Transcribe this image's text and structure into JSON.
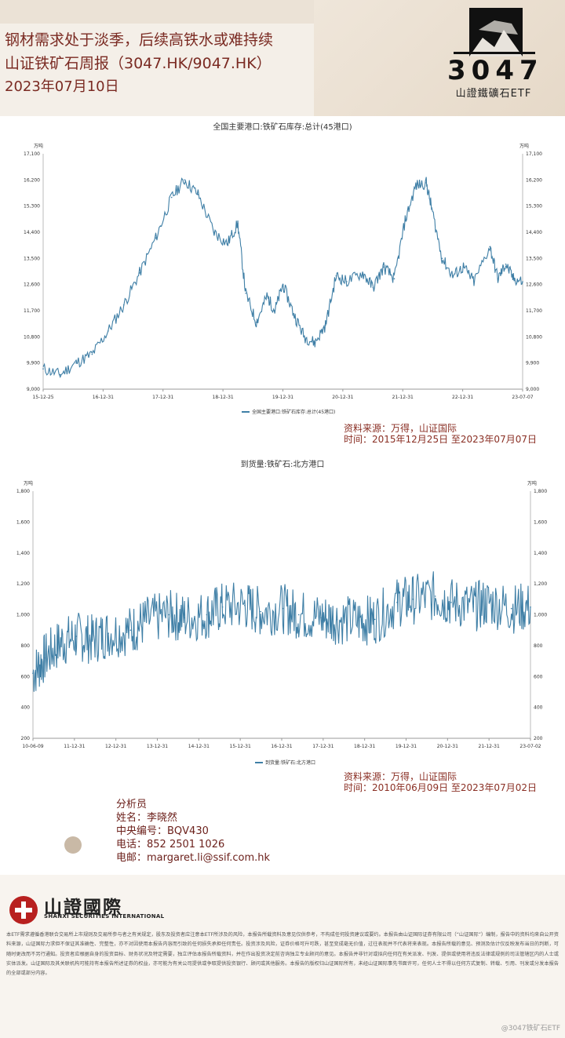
{
  "header": {
    "title": "钢材需求处于淡季，后续高铁水或难持续",
    "subtitle": "山证铁矿石周报（3047.HK/9047.HK）",
    "date": "2023年07月10日",
    "logo_code": "3047",
    "logo_name": "山證鐵礦石ETF"
  },
  "colors": {
    "brand": "#7a2a22",
    "line": "#3f7fa6",
    "source_text": "#8a2f24"
  },
  "chart_data": [
    {
      "type": "line",
      "title": "全国主要港口:铁矿石库存:总计(45港口)",
      "unit_left": "万吨",
      "unit_right": "万吨",
      "legend": "全国主要港口:铁矿石库存:总计(45港口)",
      "ylim": [
        9000,
        17100
      ],
      "yticks": [
        "9,000",
        "9,900",
        "10,800",
        "11,700",
        "12,600",
        "13,500",
        "14,400",
        "15,300",
        "16,200",
        "17,100"
      ],
      "xticks": [
        "15-12-25",
        "16-12-31",
        "17-12-31",
        "18-12-31",
        "19-12-31",
        "20-12-31",
        "21-12-31",
        "22-12-31",
        "23-07-07"
      ],
      "x": [
        "2015-12-25",
        "2016-04-01",
        "2016-07-01",
        "2016-10-01",
        "2017-01-01",
        "2017-04-01",
        "2017-07-01",
        "2017-10-01",
        "2017-12-31",
        "2018-03-15",
        "2018-06-01",
        "2018-09-01",
        "2018-11-15",
        "2019-01-15",
        "2019-03-01",
        "2019-05-01",
        "2019-07-01",
        "2019-08-15",
        "2019-10-01",
        "2019-12-01",
        "2020-02-01",
        "2020-04-01",
        "2020-06-01",
        "2020-08-01",
        "2020-10-01",
        "2020-12-31",
        "2021-03-01",
        "2021-05-01",
        "2021-07-01",
        "2021-09-01",
        "2021-11-01",
        "2021-12-31",
        "2022-02-01",
        "2022-04-01",
        "2022-06-01",
        "2022-08-01",
        "2022-10-01",
        "2022-12-31",
        "2023-02-15",
        "2023-04-01",
        "2023-05-15",
        "2023-07-07"
      ],
      "y": [
        9700,
        9500,
        9900,
        10200,
        11000,
        11900,
        13000,
        14200,
        15600,
        16200,
        15700,
        14400,
        14000,
        14700,
        12300,
        11300,
        12200,
        11700,
        12600,
        11600,
        10800,
        10600,
        11200,
        12900,
        12700,
        13000,
        12500,
        13200,
        12800,
        14800,
        16000,
        16100,
        15200,
        13500,
        12900,
        13200,
        12700,
        13900,
        12800,
        13300,
        12800,
        12700
      ],
      "source": "资料来源：万得，山证国际",
      "time": "时间：2015年12月25日 至2023年07月07日"
    },
    {
      "type": "line",
      "title": "到货量:铁矿石:北方港口",
      "unit_left": "万吨",
      "unit_right": "万吨",
      "legend": "到货量:铁矿石:北方港口",
      "ylim": [
        200,
        1800
      ],
      "yticks": [
        "200",
        "400",
        "600",
        "800",
        "1,000",
        "1,200",
        "1,400",
        "1,600",
        "1,800"
      ],
      "xticks": [
        "10-06-09",
        "11-12-31",
        "12-12-31",
        "13-12-31",
        "14-12-31",
        "15-12-31",
        "16-12-31",
        "17-12-31",
        "18-12-31",
        "19-12-31",
        "20-12-31",
        "21-12-31",
        "23-07-02"
      ],
      "x": [
        "2010-06-09",
        "2010-10-01",
        "2011-03-01",
        "2011-08-01",
        "2011-12-31",
        "2012-06-01",
        "2012-12-31",
        "2013-06-01",
        "2013-12-31",
        "2014-06-01",
        "2014-12-31",
        "2015-06-01",
        "2015-12-31",
        "2016-06-01",
        "2016-12-31",
        "2017-06-01",
        "2017-12-31",
        "2018-06-01",
        "2018-12-31",
        "2019-06-01",
        "2019-12-31",
        "2020-06-01",
        "2020-12-31",
        "2021-06-01",
        "2021-12-31",
        "2022-06-01",
        "2022-12-31",
        "2023-07-02"
      ],
      "y": [
        620,
        720,
        820,
        860,
        840,
        880,
        900,
        960,
        1000,
        980,
        1000,
        1050,
        1060,
        1020,
        1040,
        1000,
        980,
        970,
        960,
        970,
        1080,
        1100,
        1120,
        1080,
        1050,
        1080,
        1040,
        1050
      ],
      "source": "资料来源：万得，山证国际",
      "time": "时间：2010年06月09日 至2023年07月02日"
    }
  ],
  "analyst": {
    "role": "分析员",
    "name": "姓名：李晓然",
    "ce": "中央编号：BQV430",
    "phone": "电话：852 2501 1026",
    "email": "电邮：margaret.li@ssif.com.hk"
  },
  "footer": {
    "firm_name": "山證國際",
    "firm_en": "SHANXI SECURITIES INTERNATIONAL",
    "disclaimer": "本ETF需求遵循香港联合交易所上市规则及交易所参与者之有关规定，股东及投资者应注意本ETF所涉及的风险，本报告所载资料及意见仅供参考，不构成任何投资建议或要约。本报告由山证国际证券有限公司（“山证国际”）编制，报告中的资料均来自公开资料来源，山证国际力求但不保证其准确性、完整性，亦不对因使用本报告内容而引致的任何损失承担任何责任。投资涉及风险，证券价格可升可跌，甚至变成毫无价值，过往表现并不代表将来表现。本报告所载的意见、预测及估计仅反映发布当日的判断，可随时更改而不另行通知。投资者应根据自身的投资目标、财务状况及特定需要，独立评估本报告所载资料，并在作出投资决定前咨询独立专业顾问的意见。本报告并非针对或拟向任何在有关派发、刊发、提供或使用将违反法律或规例的司法管辖区内的人士或实体派发。山证国际及其关联机构可能持有本报告所述证券的权益，亦可能为有关公司提供或争取提供投资银行、顾问或其他服务。本报告的版权归山证国际所有，未经山证国际事先书面许可，任何人士不得以任何方式复制、转载、引用、刊发或分发本报告的全部或部分内容。",
    "watermark": "@3047铁矿石ETF"
  }
}
